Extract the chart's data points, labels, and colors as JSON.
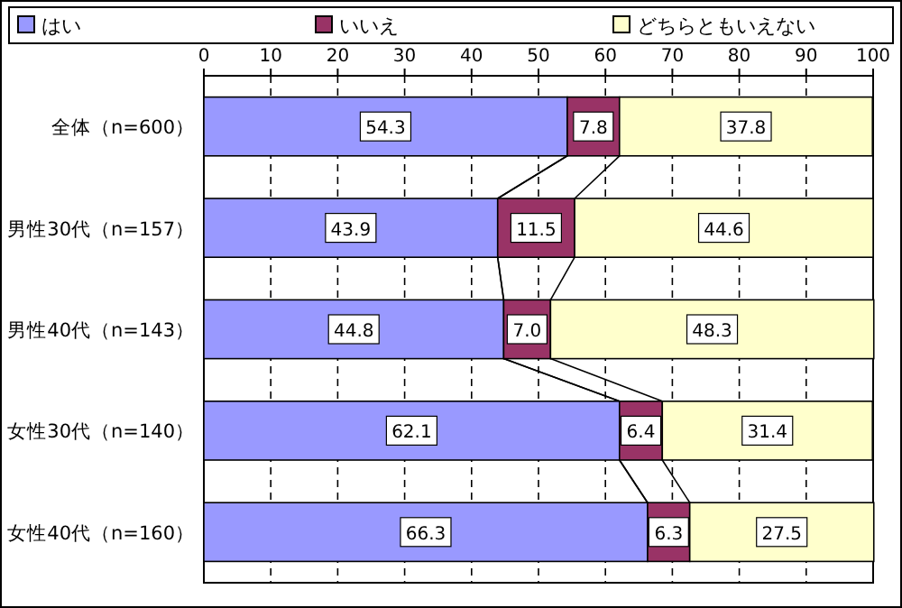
{
  "chart_data": {
    "type": "bar",
    "orientation": "horizontal",
    "stacked": true,
    "grid": "x",
    "legend": "top",
    "line_style": "solid",
    "categories": [
      "全体（n=600）",
      "男性30代（n=157）",
      "男性40代（n=143）",
      "女性30代（n=140）",
      "女性40代（n=160）"
    ],
    "series": [
      {
        "name": "はい",
        "color": "#9999ff",
        "values": [
          54.3,
          43.9,
          44.8,
          62.1,
          66.3
        ],
        "value_labels": [
          "54.3",
          "43.9",
          "44.8",
          "62.1",
          "66.3"
        ]
      },
      {
        "name": "いいえ",
        "color": "#993366",
        "values": [
          7.8,
          11.5,
          7.0,
          6.4,
          6.3
        ],
        "value_labels": [
          "7.8",
          "11.5",
          "7.0",
          "6.4",
          "6.3"
        ]
      },
      {
        "name": "どちらともいえない",
        "color": "#ffffcc",
        "values": [
          37.8,
          44.6,
          48.3,
          31.4,
          27.5
        ],
        "value_labels": [
          "37.8",
          "44.6",
          "48.3",
          "31.4",
          "27.5"
        ]
      }
    ],
    "xlim": [
      0,
      100
    ],
    "xticks": [
      0,
      10,
      20,
      30,
      40,
      50,
      60,
      70,
      80,
      90,
      100
    ]
  }
}
